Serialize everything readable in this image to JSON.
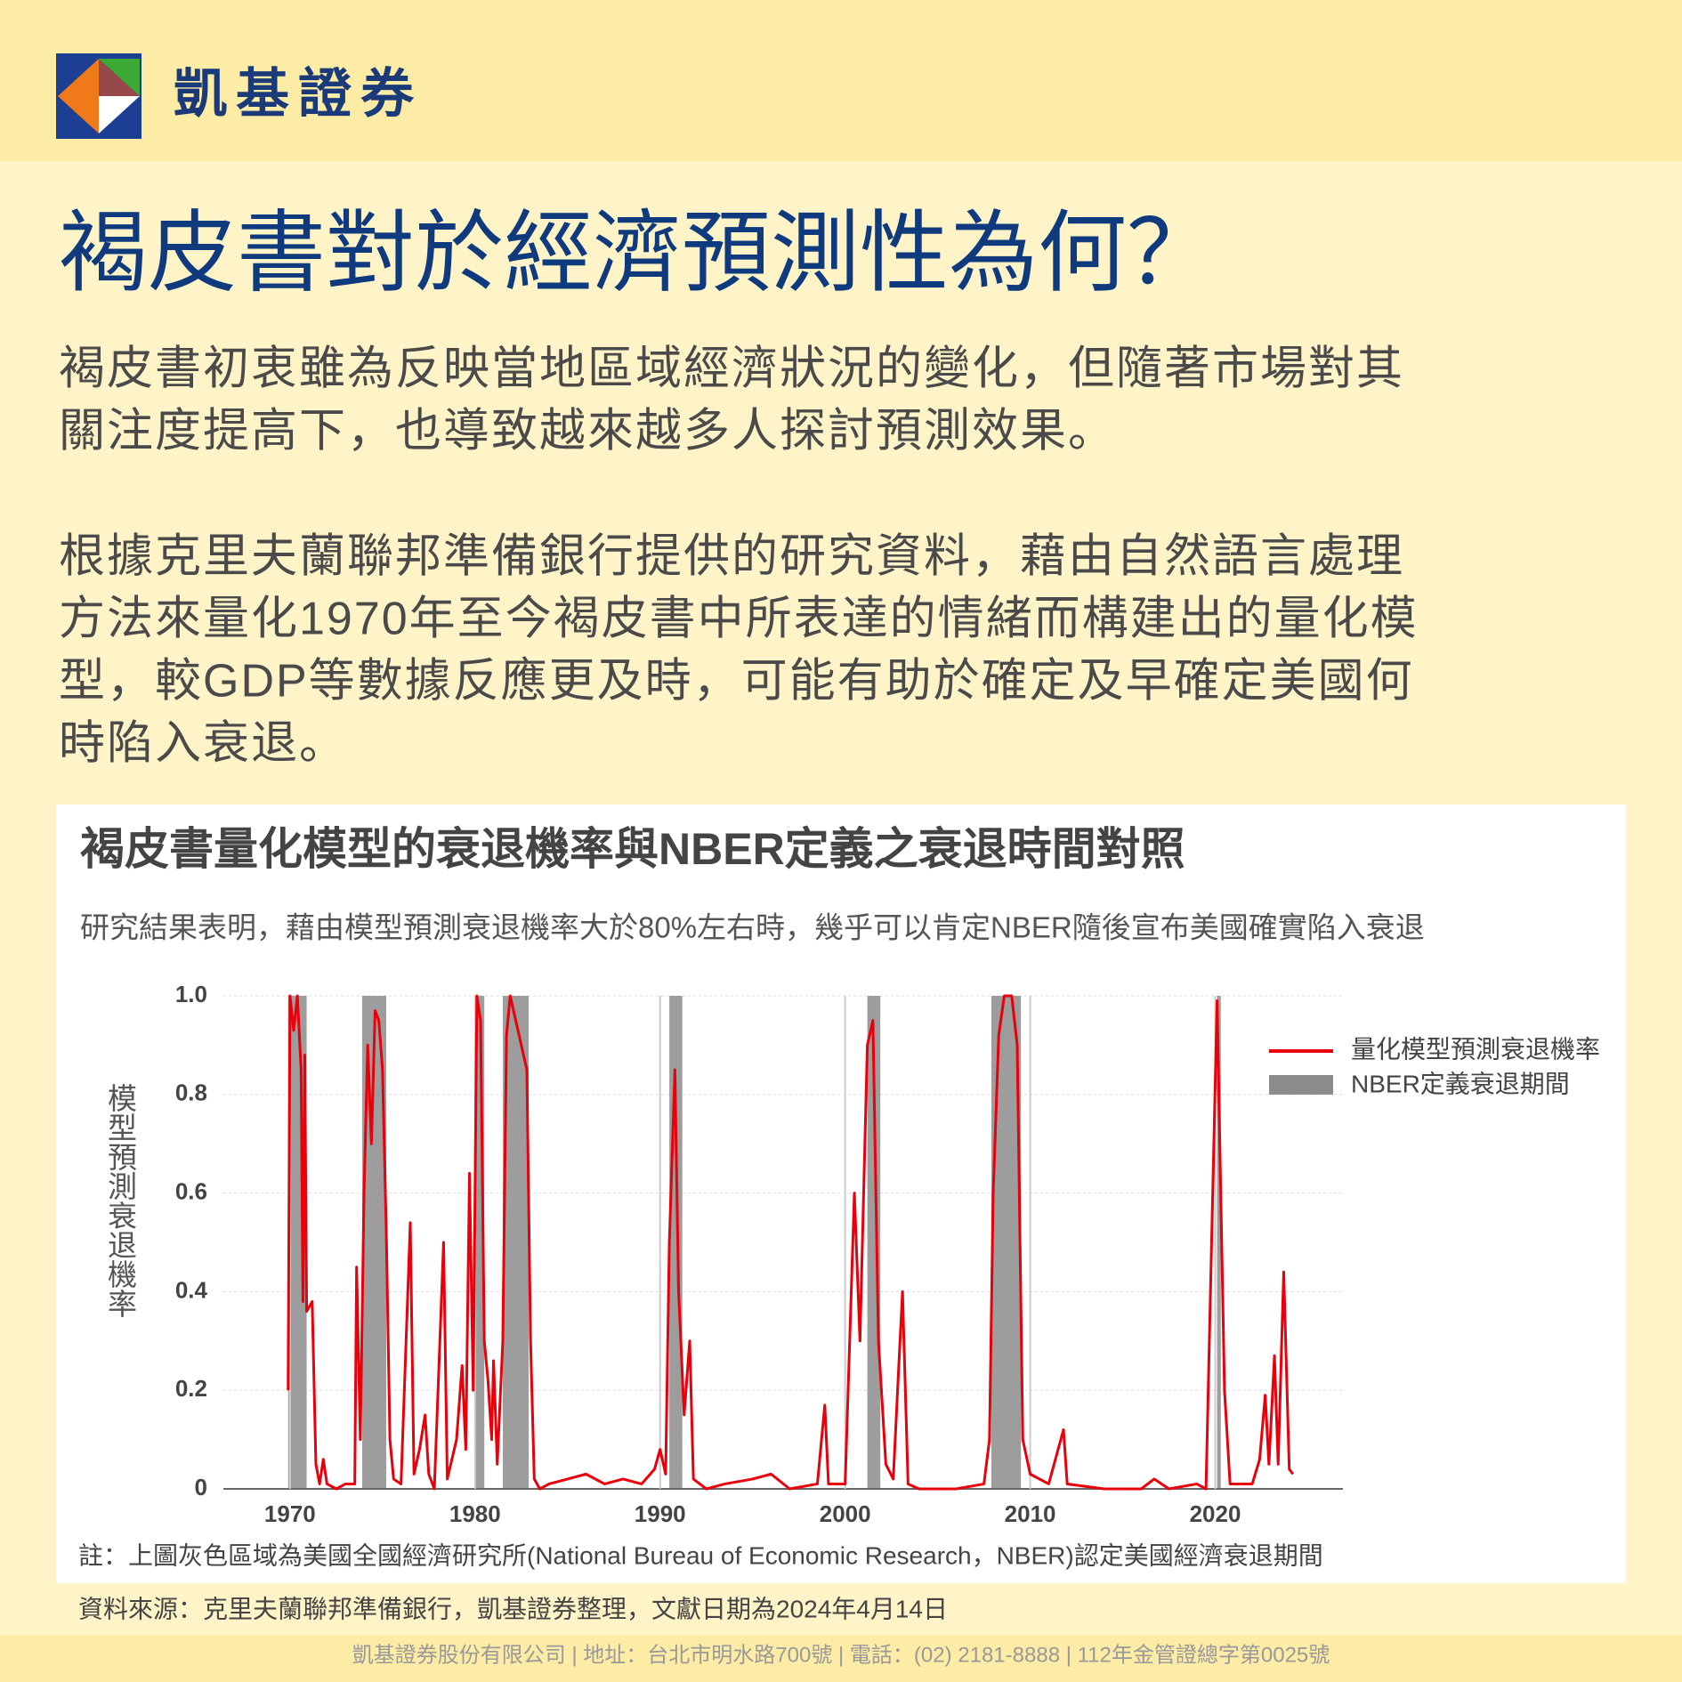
{
  "header": {
    "brand": "凱基證券"
  },
  "title": "褐皮書對於經濟預測性為何？",
  "paragraphs": [
    [
      "褐皮書初衷雖為反映當地區域經濟狀況的變化，但隨著市場對其",
      "關注度提高下，也導致越來越多人探討預測效果。"
    ],
    [
      "根據克里夫蘭聯邦準備銀行提供的研究資料，藉由自然語言處理",
      "方法來量化1970年至今褐皮書中所表達的情緒而構建出的量化模",
      "型，較GDP等數據反應更及時，可能有助於確定及早確定美國何",
      "時陷入衰退。"
    ]
  ],
  "chart_data": {
    "type": "line",
    "title": "褐皮書量化模型的衰退機率與NBER定義之衰退時間對照",
    "subtitle": "研究結果表明，藉由模型預測衰退機率大於80%左右時，幾乎可以肯定NBER隨後宣布美國確實陷入衰退",
    "y_label": "模型預測衰退機率",
    "xlim": [
      1966.4,
      2026.9
    ],
    "ylim": [
      0,
      1
    ],
    "xticks": [
      1970,
      1980,
      1990,
      2000,
      2010,
      2020
    ],
    "yticks": [
      0,
      0.2,
      0.4,
      0.6,
      0.8,
      {
        "value": 1,
        "label": "1.0"
      }
    ],
    "grid": true,
    "legend": "upper right",
    "shaded": {
      "name": "NBER定義衰退期間",
      "color": "#8c8c8c",
      "spans": [
        [
          1969.9,
          1970.9
        ],
        [
          1973.9,
          1975.2
        ],
        [
          1980.0,
          1980.5
        ],
        [
          1981.5,
          1982.9
        ],
        [
          1990.5,
          1991.2
        ],
        [
          2001.2,
          2001.9
        ],
        [
          2007.9,
          2009.5
        ],
        [
          2020.1,
          2020.3
        ]
      ]
    },
    "x": [
      1969.9,
      1970.0,
      1970.2,
      1970.4,
      1970.6,
      1970.7,
      1970.8,
      1970.9,
      1971.2,
      1971.4,
      1971.6,
      1971.8,
      1972.0,
      1972.5,
      1973.0,
      1973.5,
      1973.6,
      1973.8,
      1974.0,
      1974.2,
      1974.4,
      1974.6,
      1974.8,
      1975.0,
      1975.2,
      1975.4,
      1975.6,
      1976.0,
      1976.5,
      1976.7,
      1977.0,
      1977.3,
      1977.5,
      1977.8,
      1978.3,
      1978.5,
      1979.0,
      1979.3,
      1979.5,
      1979.7,
      1979.9,
      1980.1,
      1980.3,
      1980.5,
      1980.7,
      1980.9,
      1981.0,
      1981.2,
      1981.5,
      1981.7,
      1981.9,
      1982.2,
      1982.5,
      1982.8,
      1983.0,
      1983.2,
      1983.5,
      1984.0,
      1985.0,
      1986.0,
      1987.0,
      1988.0,
      1989.0,
      1989.7,
      1990.0,
      1990.3,
      1990.5,
      1990.8,
      1991.0,
      1991.3,
      1991.6,
      1991.8,
      1992.5,
      1993.5,
      1995.0,
      1996.0,
      1997.0,
      1998.5,
      1998.9,
      1999.1,
      2000.0,
      2000.5,
      2000.8,
      2001.2,
      2001.5,
      2001.8,
      2002.2,
      2002.6,
      2002.9,
      2003.1,
      2003.4,
      2004.0,
      2006.0,
      2007.5,
      2007.8,
      2008.0,
      2008.3,
      2008.6,
      2009.0,
      2009.3,
      2009.6,
      2010.0,
      2011.0,
      2011.8,
      2012.0,
      2014.0,
      2016.0,
      2016.7,
      2017.5,
      2019.0,
      2019.5,
      2020.1,
      2020.5,
      2020.8,
      2022.0,
      2022.4,
      2022.7,
      2022.9,
      2023.2,
      2023.4,
      2023.7,
      2024.0,
      2024.2
    ],
    "series": [
      {
        "name": "量化模型預測衰退機率",
        "color": "#e8000b",
        "values": [
          0.2,
          1.0,
          0.93,
          1.0,
          0.85,
          0.38,
          0.88,
          0.36,
          0.38,
          0.05,
          0.01,
          0.06,
          0.01,
          0.0,
          0.01,
          0.01,
          0.45,
          0.1,
          0.6,
          0.9,
          0.7,
          0.97,
          0.95,
          0.85,
          0.53,
          0.1,
          0.02,
          0.01,
          0.54,
          0.03,
          0.08,
          0.15,
          0.03,
          0.0,
          0.5,
          0.02,
          0.1,
          0.25,
          0.08,
          0.64,
          0.2,
          1.0,
          0.95,
          0.3,
          0.22,
          0.1,
          0.26,
          0.05,
          0.3,
          0.92,
          1.0,
          0.95,
          0.9,
          0.85,
          0.3,
          0.02,
          0.0,
          0.01,
          0.02,
          0.03,
          0.01,
          0.02,
          0.01,
          0.04,
          0.08,
          0.03,
          0.5,
          0.85,
          0.4,
          0.15,
          0.3,
          0.02,
          0.0,
          0.01,
          0.02,
          0.03,
          0.0,
          0.01,
          0.17,
          0.01,
          0.01,
          0.6,
          0.3,
          0.9,
          0.95,
          0.3,
          0.05,
          0.02,
          0.25,
          0.4,
          0.01,
          0.0,
          0.0,
          0.01,
          0.1,
          0.6,
          0.92,
          1.0,
          1.0,
          0.9,
          0.1,
          0.03,
          0.01,
          0.12,
          0.01,
          0.0,
          0.0,
          0.02,
          0.0,
          0.01,
          0.0,
          0.99,
          0.2,
          0.01,
          0.01,
          0.06,
          0.19,
          0.05,
          0.27,
          0.05,
          0.44,
          0.04,
          0.03
        ]
      }
    ],
    "note": "註：上圖灰色區域為美國全國經濟研究所(National  Bureau of Economic Research，NBER)認定美國經濟衰退期間"
  },
  "source": "資料來源：克里夫蘭聯邦準備銀行，凱基證券整理，文獻日期為2024年4月14日",
  "footer": "凱基證券股份有限公司 | 地址：台北市明水路700號 | 電話：(02) 2181-8888 | 112年金管證總字第0025號"
}
